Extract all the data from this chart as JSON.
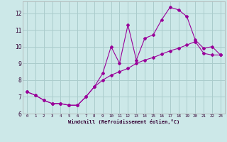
{
  "xlabel": "Windchill (Refroidissement éolien,°C)",
  "xlim": [
    -0.5,
    23.5
  ],
  "ylim": [
    6,
    12.7
  ],
  "yticks": [
    6,
    7,
    8,
    9,
    10,
    11,
    12
  ],
  "xticks": [
    0,
    1,
    2,
    3,
    4,
    5,
    6,
    7,
    8,
    9,
    10,
    11,
    12,
    13,
    14,
    15,
    16,
    17,
    18,
    19,
    20,
    21,
    22,
    23
  ],
  "background_color": "#cce8e8",
  "grid_color": "#aacccc",
  "line_color": "#990099",
  "jagged_x": [
    0,
    1,
    2,
    3,
    4,
    5,
    6,
    7,
    8,
    9,
    10,
    11,
    12,
    13,
    14,
    15,
    16,
    17,
    18,
    19,
    20,
    21,
    22,
    23
  ],
  "jagged_y": [
    7.3,
    7.1,
    6.8,
    6.6,
    6.6,
    6.5,
    6.5,
    7.0,
    7.6,
    8.4,
    10.0,
    9.0,
    11.3,
    9.2,
    10.5,
    10.7,
    11.6,
    12.35,
    12.2,
    11.8,
    10.4,
    9.9,
    10.0,
    9.5
  ],
  "trend_x": [
    0,
    1,
    2,
    3,
    4,
    5,
    6,
    7,
    8,
    9,
    10,
    11,
    12,
    13,
    14,
    15,
    16,
    17,
    18,
    19,
    20,
    21,
    22,
    23
  ],
  "trend_y": [
    7.3,
    7.1,
    6.8,
    6.6,
    6.6,
    6.5,
    6.5,
    7.0,
    7.6,
    8.0,
    8.3,
    8.5,
    8.7,
    9.0,
    9.2,
    9.35,
    9.55,
    9.75,
    9.9,
    10.1,
    10.3,
    9.6,
    9.5,
    9.5
  ]
}
